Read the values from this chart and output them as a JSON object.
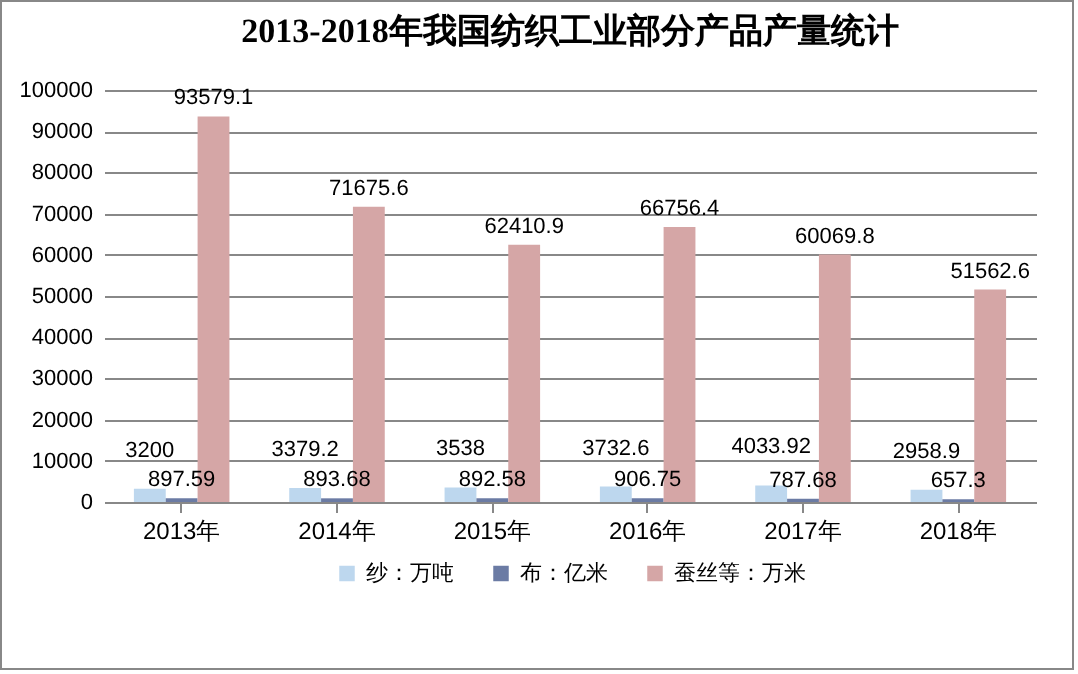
{
  "chart_data": {
    "type": "bar",
    "title": "2013-2018年我国纺织工业部分产品产量统计",
    "categories": [
      "2013年",
      "2014年",
      "2015年",
      "2016年",
      "2017年",
      "2018年"
    ],
    "series": [
      {
        "name": "纱：万吨",
        "color": "#bdd7ee",
        "values": [
          3200,
          3379.2,
          3538,
          3732.6,
          4033.92,
          2958.9
        ]
      },
      {
        "name": "布：亿米",
        "color": "#6b7ba4",
        "values": [
          897.59,
          893.68,
          892.58,
          906.75,
          787.68,
          657.3
        ]
      },
      {
        "name": "蚕丝等：万米",
        "color": "#d5a6a6",
        "values": [
          93579.1,
          71675.6,
          62410.9,
          66756.4,
          60069.8,
          51562.6
        ]
      }
    ],
    "ylim": [
      0,
      100000
    ],
    "yticks": [
      0,
      10000,
      20000,
      30000,
      40000,
      50000,
      60000,
      70000,
      80000,
      90000,
      100000
    ],
    "grid": "y",
    "legend": "bottom",
    "data_labels": true
  }
}
